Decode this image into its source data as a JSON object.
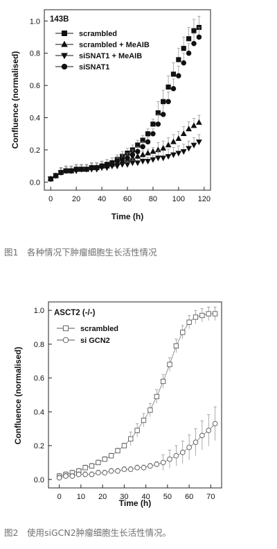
{
  "figure1": {
    "caption": "图1　各种情况下肿瘤细胞生长活性情况",
    "chart_data": {
      "type": "scatter",
      "panel_label": "143B",
      "xlabel": "Time (h)",
      "ylabel": "Confluence (normalised)",
      "xlim": [
        -5,
        125
      ],
      "ylim": [
        -0.05,
        1.07
      ],
      "xticks": [
        "0",
        "20",
        "40",
        "60",
        "80",
        "100",
        "120"
      ],
      "xtick_values": [
        0,
        20,
        40,
        60,
        80,
        100,
        120
      ],
      "yticks": [
        "0.0",
        "0.2",
        "0.4",
        "0.6",
        "0.8",
        "1.0"
      ],
      "ytick_values": [
        0,
        0.2,
        0.4,
        0.6,
        0.8,
        1.0
      ],
      "grid": false,
      "legend_position": "top-left",
      "series": [
        {
          "name": "scrambled",
          "marker": "square",
          "x": [
            0,
            4,
            8,
            12,
            16,
            20,
            24,
            28,
            32,
            36,
            40,
            44,
            48,
            52,
            56,
            60,
            64,
            68,
            72,
            76,
            80,
            84,
            88,
            92,
            96,
            100,
            104,
            108,
            112,
            116
          ],
          "y": [
            0.02,
            0.04,
            0.06,
            0.07,
            0.07,
            0.08,
            0.08,
            0.08,
            0.09,
            0.09,
            0.1,
            0.11,
            0.12,
            0.14,
            0.16,
            0.18,
            0.2,
            0.23,
            0.26,
            0.3,
            0.36,
            0.43,
            0.5,
            0.59,
            0.67,
            0.76,
            0.83,
            0.89,
            0.94,
            0.96
          ]
        },
        {
          "name": "scrambled + MeAIB",
          "marker": "triangle-up",
          "x": [
            0,
            4,
            8,
            12,
            16,
            20,
            24,
            28,
            32,
            36,
            40,
            44,
            48,
            52,
            56,
            60,
            64,
            68,
            72,
            76,
            80,
            84,
            88,
            92,
            96,
            100,
            104,
            108,
            112,
            116
          ],
          "y": [
            0.02,
            0.04,
            0.06,
            0.07,
            0.07,
            0.08,
            0.08,
            0.08,
            0.09,
            0.09,
            0.1,
            0.1,
            0.11,
            0.12,
            0.13,
            0.14,
            0.15,
            0.16,
            0.17,
            0.18,
            0.19,
            0.2,
            0.21,
            0.23,
            0.25,
            0.27,
            0.3,
            0.33,
            0.35,
            0.37
          ]
        },
        {
          "name": "siSNAT1 + MeAIB",
          "marker": "triangle-down",
          "x": [
            0,
            4,
            8,
            12,
            16,
            20,
            24,
            28,
            32,
            36,
            40,
            44,
            48,
            52,
            56,
            60,
            64,
            68,
            72,
            76,
            80,
            84,
            88,
            92,
            96,
            100,
            104,
            108,
            112,
            116
          ],
          "y": [
            0.02,
            0.04,
            0.06,
            0.07,
            0.07,
            0.07,
            0.08,
            0.08,
            0.08,
            0.08,
            0.09,
            0.09,
            0.1,
            0.1,
            0.11,
            0.11,
            0.12,
            0.12,
            0.13,
            0.13,
            0.14,
            0.15,
            0.15,
            0.16,
            0.17,
            0.18,
            0.19,
            0.21,
            0.23,
            0.25
          ]
        },
        {
          "name": "siSNAT1",
          "marker": "circle",
          "x": [
            0,
            4,
            8,
            12,
            16,
            20,
            24,
            28,
            32,
            36,
            40,
            44,
            48,
            52,
            56,
            60,
            64,
            68,
            72,
            76,
            80,
            84,
            88,
            92,
            96,
            100,
            104,
            108,
            112,
            116
          ],
          "y": [
            0.02,
            0.04,
            0.06,
            0.07,
            0.07,
            0.08,
            0.08,
            0.08,
            0.09,
            0.09,
            0.1,
            0.11,
            0.12,
            0.13,
            0.14,
            0.15,
            0.17,
            0.19,
            0.22,
            0.25,
            0.3,
            0.36,
            0.42,
            0.5,
            0.58,
            0.66,
            0.74,
            0.8,
            0.86,
            0.9
          ]
        }
      ]
    }
  },
  "figure2": {
    "caption": "图2　使用siGCN2肿瘤细胞生长活性情况。",
    "chart_data": {
      "type": "scatter",
      "panel_label": "ASCT2 (-/-)",
      "xlabel": "Time (h)",
      "ylabel": "Confluence (normalised)",
      "xlim": [
        -5,
        75
      ],
      "ylim": [
        -0.05,
        1.05
      ],
      "xticks": [
        "0",
        "10",
        "20",
        "30",
        "40",
        "50",
        "60",
        "70"
      ],
      "xtick_values": [
        0,
        10,
        20,
        30,
        40,
        50,
        60,
        70
      ],
      "yticks": [
        "0.0",
        "0.2",
        "0.4",
        "0.6",
        "0.8",
        "1.0"
      ],
      "ytick_values": [
        0,
        0.2,
        0.4,
        0.6,
        0.8,
        1.0
      ],
      "grid": false,
      "legend_position": "top-left",
      "series": [
        {
          "name": "scrambled",
          "marker": "open-square",
          "x": [
            0,
            3,
            6,
            9,
            12,
            15,
            18,
            21,
            24,
            27,
            30,
            33,
            36,
            39,
            42,
            45,
            48,
            51,
            54,
            57,
            60,
            63,
            66,
            69,
            72
          ],
          "y": [
            0.02,
            0.03,
            0.04,
            0.05,
            0.07,
            0.08,
            0.1,
            0.12,
            0.14,
            0.17,
            0.2,
            0.24,
            0.29,
            0.35,
            0.41,
            0.49,
            0.58,
            0.68,
            0.79,
            0.87,
            0.93,
            0.96,
            0.97,
            0.98,
            0.98
          ]
        },
        {
          "name": "si GCN2",
          "marker": "open-circle",
          "x": [
            0,
            3,
            6,
            9,
            12,
            15,
            18,
            21,
            24,
            27,
            30,
            33,
            36,
            39,
            42,
            45,
            48,
            51,
            54,
            57,
            60,
            63,
            66,
            69,
            72
          ],
          "y": [
            0.01,
            0.02,
            0.02,
            0.03,
            0.03,
            0.03,
            0.04,
            0.04,
            0.05,
            0.05,
            0.06,
            0.06,
            0.07,
            0.07,
            0.08,
            0.09,
            0.1,
            0.12,
            0.14,
            0.16,
            0.19,
            0.22,
            0.26,
            0.29,
            0.33
          ]
        }
      ]
    }
  }
}
